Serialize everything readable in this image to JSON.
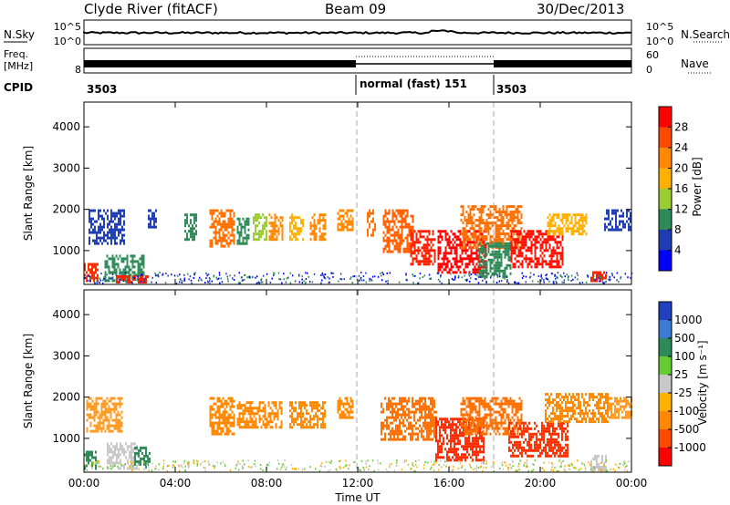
{
  "header": {
    "station": "Clyde River (fitACF)",
    "beam": "Beam 09",
    "date": "30/Dec/2013"
  },
  "nsky_panel": {
    "left_label": "N.Sky",
    "left_ticks": [
      "10^5",
      "10^0"
    ],
    "right_ticks": [
      "10^5",
      "10^0"
    ],
    "right_label": "N.Search"
  },
  "freq_panel": {
    "left_label_line1": "Freq.",
    "left_label_line2": "[MHz]",
    "left_ticks": [
      "8"
    ],
    "right_ticks": [
      "60",
      "0"
    ],
    "right_label": "Nave"
  },
  "cpid": {
    "label": "CPID",
    "segments": [
      {
        "start_hour": 0,
        "text": "3503"
      },
      {
        "start_hour": 12,
        "text": "normal (fast) 151"
      },
      {
        "start_hour": 18,
        "text": "3503"
      }
    ]
  },
  "chart_data": [
    {
      "type": "heatmap",
      "name": "power-panel",
      "ylabel": "Slant Range [km]",
      "xlabel": "",
      "x_ticks": [
        "00:00",
        "04:00",
        "08:00",
        "12:00",
        "16:00",
        "20:00",
        "00:00"
      ],
      "x_tick_hours": [
        0,
        4,
        8,
        12,
        16,
        20,
        24
      ],
      "y_ticks": [
        1000,
        2000,
        3000,
        4000
      ],
      "ylim": [
        180,
        4600
      ],
      "xlim_hours": [
        0,
        24
      ],
      "colorbar": {
        "label": "Power [dB]",
        "ticks": [
          "28",
          "24",
          "20",
          "16",
          "12",
          "8",
          "4"
        ],
        "colors": [
          "#ff0000",
          "#ff4a00",
          "#ff8800",
          "#ffb000",
          "#9acd32",
          "#2e8b57",
          "#1e3cb4",
          "#0000ff"
        ]
      },
      "scatter_blocks": [
        {
          "t0": 0.2,
          "t1": 1.8,
          "r0": 1200,
          "r1": 2000,
          "c": "#1e3cb4"
        },
        {
          "t0": 0.0,
          "t1": 0.6,
          "r0": 300,
          "r1": 700,
          "c": "#ff3000"
        },
        {
          "t0": 0.9,
          "t1": 2.6,
          "r0": 250,
          "r1": 900,
          "c": "#2e8b57"
        },
        {
          "t0": 1.4,
          "t1": 2.8,
          "r0": 250,
          "r1": 400,
          "c": "#ff2000"
        },
        {
          "t0": 2.8,
          "t1": 3.2,
          "r0": 1600,
          "r1": 2000,
          "c": "#1e3cb4"
        },
        {
          "t0": 4.4,
          "t1": 4.9,
          "r0": 1300,
          "r1": 1900,
          "c": "#2e8b57"
        },
        {
          "t0": 5.5,
          "t1": 6.6,
          "r0": 1100,
          "r1": 2000,
          "c": "#ff7000"
        },
        {
          "t0": 6.7,
          "t1": 7.2,
          "r0": 1200,
          "r1": 1800,
          "c": "#2e8b57"
        },
        {
          "t0": 7.4,
          "t1": 8.0,
          "r0": 1300,
          "r1": 1900,
          "c": "#9acd32"
        },
        {
          "t0": 8.1,
          "t1": 8.7,
          "r0": 1300,
          "r1": 1900,
          "c": "#ff8800"
        },
        {
          "t0": 9.0,
          "t1": 9.6,
          "r0": 1300,
          "r1": 1900,
          "c": "#ffb000"
        },
        {
          "t0": 9.9,
          "t1": 10.6,
          "r0": 1300,
          "r1": 1900,
          "c": "#ff8800"
        },
        {
          "t0": 11.1,
          "t1": 11.8,
          "r0": 1500,
          "r1": 2000,
          "c": "#ff8800"
        },
        {
          "t0": 12.4,
          "t1": 12.8,
          "r0": 1400,
          "r1": 2000,
          "c": "#ff7000"
        },
        {
          "t0": 13.1,
          "t1": 14.4,
          "r0": 1000,
          "r1": 2000,
          "c": "#ff6000"
        },
        {
          "t0": 14.3,
          "t1": 15.4,
          "r0": 700,
          "r1": 1500,
          "c": "#ff2000"
        },
        {
          "t0": 15.5,
          "t1": 17.6,
          "r0": 500,
          "r1": 1500,
          "c": "#ff0000"
        },
        {
          "t0": 16.5,
          "t1": 19.2,
          "r0": 1100,
          "r1": 2100,
          "c": "#ff7000"
        },
        {
          "t0": 17.3,
          "t1": 18.7,
          "r0": 400,
          "r1": 1200,
          "c": "#2e8b57"
        },
        {
          "t0": 18.7,
          "t1": 21.0,
          "r0": 600,
          "r1": 1500,
          "c": "#ff1000"
        },
        {
          "t0": 20.3,
          "t1": 22.0,
          "r0": 1400,
          "r1": 1900,
          "c": "#ffb000"
        },
        {
          "t0": 22.2,
          "t1": 22.9,
          "r0": 250,
          "r1": 500,
          "c": "#ff2000"
        },
        {
          "t0": 22.8,
          "t1": 24.0,
          "r0": 1500,
          "r1": 2000,
          "c": "#1e3cb4"
        }
      ]
    },
    {
      "type": "heatmap",
      "name": "velocity-panel",
      "ylabel": "Slant Range [km]",
      "xlabel": "Time UT",
      "x_ticks": [
        "00:00",
        "04:00",
        "08:00",
        "12:00",
        "16:00",
        "20:00",
        "00:00"
      ],
      "x_tick_hours": [
        0,
        4,
        8,
        12,
        16,
        20,
        24
      ],
      "y_ticks": [
        1000,
        2000,
        3000,
        4000
      ],
      "ylim": [
        180,
        4600
      ],
      "xlim_hours": [
        0,
        24
      ],
      "colorbar": {
        "label": "Velocity [m s⁻¹]",
        "ticks": [
          "1000",
          "500",
          "100",
          "25",
          "-25",
          "-100",
          "-500",
          "-1000"
        ],
        "colors": [
          "#2040c0",
          "#3a7bd5",
          "#2e8b57",
          "#66cc33",
          "#c8c8c8",
          "#ffb000",
          "#ff8800",
          "#ff4a00",
          "#ff0000"
        ]
      },
      "scatter_blocks": [
        {
          "t0": 0.1,
          "t1": 1.7,
          "r0": 1200,
          "r1": 2000,
          "c": "#ff9a20"
        },
        {
          "t0": 0.0,
          "t1": 0.5,
          "r0": 300,
          "r1": 700,
          "c": "#2e8b57"
        },
        {
          "t0": 1.0,
          "t1": 2.3,
          "r0": 300,
          "r1": 900,
          "c": "#c8c8c8"
        },
        {
          "t0": 2.2,
          "t1": 2.9,
          "r0": 300,
          "r1": 800,
          "c": "#2e8b57"
        },
        {
          "t0": 5.5,
          "t1": 6.6,
          "r0": 1100,
          "r1": 2000,
          "c": "#ff8800"
        },
        {
          "t0": 6.7,
          "t1": 8.7,
          "r0": 1300,
          "r1": 1900,
          "c": "#ff8800"
        },
        {
          "t0": 9.0,
          "t1": 10.6,
          "r0": 1300,
          "r1": 1900,
          "c": "#ff8800"
        },
        {
          "t0": 11.1,
          "t1": 11.8,
          "r0": 1500,
          "r1": 2000,
          "c": "#ff8800"
        },
        {
          "t0": 13.0,
          "t1": 15.4,
          "r0": 1000,
          "r1": 2000,
          "c": "#ff7000"
        },
        {
          "t0": 15.4,
          "t1": 17.5,
          "r0": 500,
          "r1": 1500,
          "c": "#ff2a00"
        },
        {
          "t0": 16.5,
          "t1": 19.2,
          "r0": 1100,
          "r1": 2000,
          "c": "#ff7000"
        },
        {
          "t0": 18.6,
          "t1": 21.2,
          "r0": 600,
          "r1": 1400,
          "c": "#ff3000"
        },
        {
          "t0": 20.2,
          "t1": 23.0,
          "r0": 1400,
          "r1": 2100,
          "c": "#ff8800"
        },
        {
          "t0": 22.2,
          "t1": 22.9,
          "r0": 250,
          "r1": 600,
          "c": "#c8c8c8"
        },
        {
          "t0": 23.0,
          "t1": 24.0,
          "r0": 1500,
          "r1": 2000,
          "c": "#ff9a20"
        }
      ]
    }
  ]
}
